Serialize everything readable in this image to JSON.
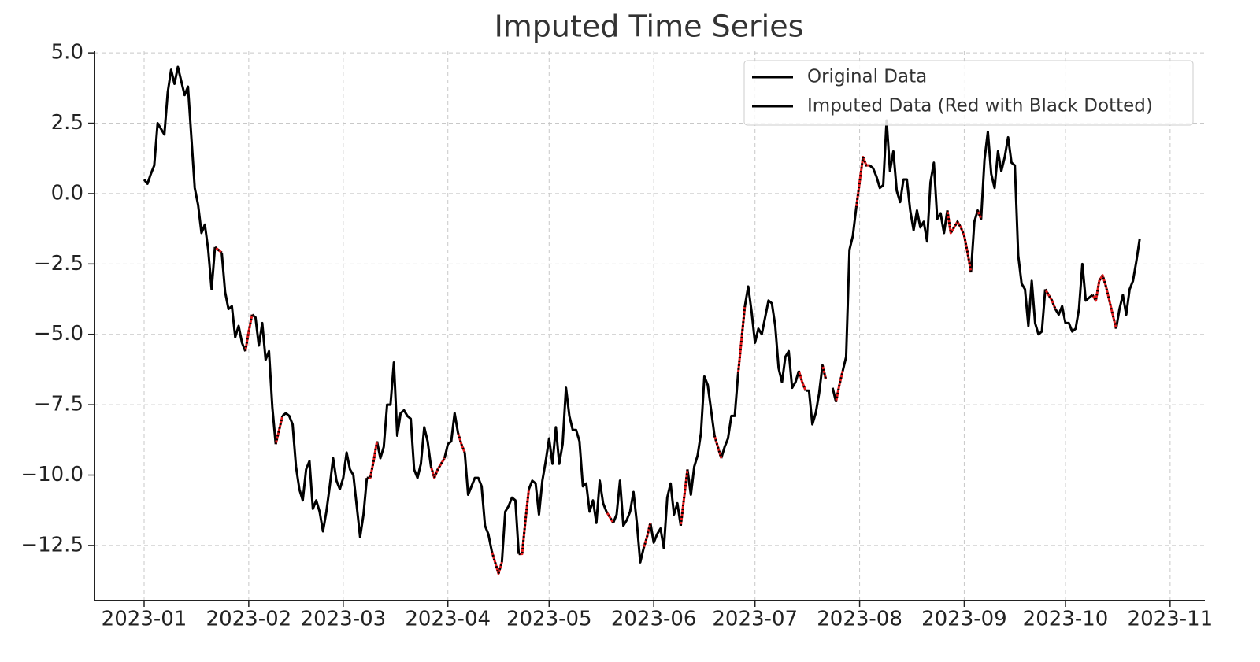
{
  "chart_data": {
    "type": "line",
    "title": "Imputed Time Series",
    "x": [
      0,
      1,
      2,
      3,
      4,
      5,
      6,
      7,
      8,
      9,
      10,
      11,
      12,
      13,
      14,
      15,
      16,
      17,
      18,
      19,
      20,
      21,
      22,
      23,
      24,
      25,
      26,
      27,
      28,
      29,
      30,
      31,
      32,
      33,
      34,
      35,
      36,
      37,
      38,
      39,
      40,
      41,
      42,
      43,
      44,
      45,
      46,
      47,
      48,
      49,
      50,
      51,
      52,
      53,
      54,
      55,
      56,
      57,
      58,
      59,
      60,
      61,
      62,
      63,
      64,
      65,
      66,
      67,
      68,
      69,
      70,
      71,
      72,
      73,
      74,
      75,
      76,
      77,
      78,
      79,
      80,
      81,
      82,
      83,
      84,
      85,
      86,
      87,
      88,
      89,
      90,
      91,
      92,
      93,
      94,
      95,
      96,
      97,
      98,
      99,
      100,
      101,
      102,
      103,
      104,
      105,
      106,
      107,
      108,
      109,
      110,
      111,
      112,
      113,
      114,
      115,
      116,
      117,
      118,
      119,
      120,
      121,
      122,
      123,
      124,
      125,
      126,
      127,
      128,
      129,
      130,
      131,
      132,
      133,
      134,
      135,
      136,
      137,
      138,
      139,
      140,
      141,
      142,
      143,
      144,
      145,
      146,
      147,
      148,
      149,
      150,
      151,
      152,
      153,
      154,
      155,
      156,
      157,
      158,
      159,
      160,
      161,
      162,
      163,
      164,
      165,
      166,
      167,
      168,
      169,
      170,
      171,
      172,
      173,
      174,
      175,
      176,
      177,
      178,
      179,
      180,
      181,
      182,
      183,
      184,
      185,
      186,
      187,
      188,
      189,
      190,
      191,
      192,
      193,
      194,
      195,
      196,
      197,
      198,
      199,
      200,
      201,
      202,
      203,
      204,
      205,
      206,
      207,
      208,
      209,
      210,
      211,
      212,
      213,
      214,
      215,
      216,
      217,
      218,
      219,
      220,
      221,
      222,
      223,
      224,
      225,
      226,
      227,
      228,
      229,
      230,
      231,
      232,
      233,
      234,
      235,
      236,
      237,
      238,
      239,
      240,
      241,
      242,
      243,
      244,
      245,
      246,
      247,
      248,
      249,
      250,
      251,
      252,
      253,
      254,
      255,
      256,
      257,
      258,
      259,
      260,
      261,
      262,
      263,
      264,
      265,
      266,
      267,
      268,
      269,
      270,
      271,
      272,
      273,
      274,
      275,
      276,
      277,
      278,
      279,
      280,
      281,
      282,
      283,
      284,
      285,
      286,
      287,
      288,
      289,
      290,
      291,
      292,
      293,
      294,
      295
    ],
    "series": [
      {
        "name": "Original Data",
        "color": "#000000",
        "values": [
          0.5,
          0.35,
          0.7,
          1.0,
          2.5,
          2.3,
          2.1,
          3.6,
          4.4,
          3.9,
          4.5,
          4.0,
          3.5,
          3.8,
          2.0,
          0.2,
          -0.4,
          -1.4,
          -1.1,
          -2.0,
          -3.4,
          -1.9,
          null,
          -2.1,
          -3.5,
          -4.1,
          -4.0,
          -5.1,
          -4.7,
          -5.3,
          -5.6,
          null,
          -4.3,
          -4.4,
          -5.4,
          -4.6,
          -5.9,
          -5.6,
          -7.6,
          -8.9,
          null,
          -7.9,
          -7.8,
          -7.9,
          -8.2,
          -9.7,
          -10.5,
          -10.9,
          -9.8,
          -9.5,
          -11.2,
          -10.9,
          -11.3,
          -12.0,
          -11.3,
          -10.4,
          -9.4,
          -10.2,
          -10.5,
          -10.1,
          -9.2,
          -9.8,
          -10.0,
          -11.1,
          -12.2,
          -11.4,
          -10.1,
          null,
          null,
          -8.8,
          -9.4,
          -9.0,
          -7.5,
          -7.5,
          -6.0,
          -8.6,
          -7.8,
          -7.7,
          -7.9,
          -8.0,
          -9.8,
          -10.1,
          -9.6,
          -8.3,
          -8.8,
          -9.7,
          null,
          null,
          null,
          -9.4,
          -8.9,
          -8.8,
          -7.8,
          -8.5,
          null,
          -9.2,
          -10.7,
          -10.4,
          -10.1,
          -10.1,
          -10.4,
          -11.8,
          -12.1,
          -12.7,
          null,
          null,
          -13.1,
          -11.3,
          -11.1,
          -10.8,
          -10.9,
          -12.8,
          null,
          null,
          -10.5,
          -10.2,
          -10.3,
          -11.4,
          -10.2,
          -9.5,
          -8.7,
          -9.6,
          -8.3,
          -9.6,
          -8.9,
          -6.9,
          -7.9,
          -8.4,
          -8.4,
          -8.8,
          -10.4,
          -10.3,
          -11.3,
          -10.9,
          -11.7,
          -10.2,
          -11.0,
          -11.3,
          null,
          -11.7,
          -11.4,
          -10.2,
          -11.8,
          -11.6,
          -11.3,
          -10.6,
          -11.7,
          -13.1,
          -12.6,
          null,
          -11.7,
          -12.4,
          -12.1,
          -11.9,
          -12.6,
          -10.8,
          -10.3,
          -11.4,
          -11.0,
          -11.8,
          null,
          -9.8,
          -10.7,
          -9.7,
          -9.3,
          -8.5,
          -6.5,
          -6.8,
          -7.7,
          -8.6,
          null,
          -9.4,
          -9.0,
          -8.7,
          -7.9,
          -7.9,
          -6.4,
          null,
          -4.0,
          -3.3,
          -4.2,
          -5.3,
          -4.8,
          -5.0,
          -4.4,
          -3.8,
          -3.9,
          -4.7,
          -6.2,
          -6.7,
          -5.8,
          -5.6,
          -6.9,
          -6.7,
          -6.3,
          null,
          -7.0,
          -7.0,
          -8.2,
          -7.8,
          -7.1,
          -6.1,
          -6.6,
          null,
          -6.9,
          -7.4,
          null,
          -6.3,
          -5.8,
          -2.0,
          -1.5,
          -0.5,
          null,
          null,
          null,
          1.0,
          0.9,
          0.6,
          0.2,
          0.3,
          2.6,
          0.8,
          1.5,
          0.1,
          -0.3,
          0.5,
          0.5,
          -0.6,
          -1.3,
          -0.6,
          -1.2,
          -1.0,
          -1.7,
          0.4,
          1.1,
          -0.9,
          -0.7,
          -1.4,
          -0.6,
          null,
          null,
          null,
          null,
          null,
          null,
          -2.8,
          -1.0,
          -0.6,
          -0.9,
          1.2,
          2.2,
          0.7,
          0.2,
          1.5,
          0.8,
          1.3,
          2.0,
          1.1,
          1.0,
          -2.2,
          -3.2,
          -3.4,
          -4.7,
          -3.1,
          -4.6,
          -5.0,
          -4.9,
          -3.4,
          null,
          null,
          -4.1,
          -4.3,
          -4.0,
          -4.6,
          -4.6,
          -4.9,
          -4.8,
          -4.1,
          -2.5,
          -3.8,
          -3.7,
          -3.6,
          null,
          null,
          null,
          null,
          null,
          null,
          -4.8,
          -4.1,
          -3.6,
          -4.3,
          -3.4,
          -3.1,
          -2.4,
          -1.6
        ]
      },
      {
        "name": "Imputed Data (Red with Black Dotted)",
        "color": "#e41a1c",
        "dash_color": "#000000",
        "values": [
          null,
          null,
          null,
          null,
          null,
          null,
          null,
          null,
          null,
          null,
          null,
          null,
          null,
          null,
          null,
          null,
          null,
          null,
          null,
          null,
          null,
          -1.9,
          -2.0,
          -2.1,
          null,
          null,
          null,
          null,
          null,
          null,
          -5.6,
          -4.9,
          -4.3,
          null,
          null,
          null,
          null,
          null,
          null,
          -8.9,
          -8.4,
          -7.9,
          null,
          null,
          null,
          null,
          null,
          null,
          null,
          null,
          null,
          null,
          null,
          null,
          null,
          null,
          null,
          null,
          null,
          null,
          null,
          null,
          null,
          null,
          null,
          null,
          -10.1,
          -10.1,
          -9.5,
          -8.8,
          null,
          null,
          null,
          null,
          null,
          null,
          null,
          null,
          null,
          null,
          null,
          null,
          null,
          null,
          null,
          -9.7,
          -10.1,
          -9.8,
          -9.6,
          -9.4,
          null,
          null,
          null,
          -8.5,
          -8.9,
          -9.2,
          null,
          null,
          null,
          null,
          null,
          null,
          null,
          -12.7,
          -13.1,
          -13.5,
          -13.1,
          null,
          null,
          null,
          null,
          -12.8,
          -12.8,
          -11.6,
          -10.5,
          null,
          null,
          null,
          null,
          null,
          null,
          null,
          null,
          null,
          null,
          null,
          null,
          null,
          null,
          null,
          null,
          null,
          null,
          null,
          null,
          null,
          null,
          -11.3,
          -11.5,
          -11.7,
          null,
          null,
          null,
          null,
          null,
          null,
          null,
          null,
          -12.6,
          -12.2,
          -11.7,
          null,
          null,
          null,
          null,
          null,
          null,
          null,
          null,
          -11.8,
          -10.8,
          -9.8,
          null,
          null,
          null,
          null,
          null,
          null,
          null,
          -8.6,
          -9.0,
          -9.4,
          null,
          null,
          null,
          null,
          -6.4,
          -5.2,
          -4.0,
          null,
          null,
          null,
          null,
          null,
          null,
          null,
          null,
          null,
          null,
          null,
          null,
          null,
          null,
          null,
          -6.3,
          -6.7,
          -7.0,
          null,
          null,
          null,
          null,
          -6.1,
          -6.6,
          null,
          null,
          -7.4,
          -6.8,
          -6.3,
          null,
          null,
          null,
          -0.5,
          0.4,
          1.3,
          1.0,
          1.0,
          null,
          null,
          null,
          null,
          null,
          null,
          null,
          null,
          null,
          null,
          null,
          null,
          null,
          null,
          null,
          null,
          null,
          null,
          null,
          null,
          null,
          null,
          -0.6,
          -1.4,
          -1.2,
          -1.0,
          -1.2,
          -1.5,
          -2.1,
          -2.8,
          null,
          -0.6,
          -0.9,
          null,
          null,
          null,
          null,
          null,
          null,
          null,
          null,
          null,
          null,
          null,
          null,
          null,
          null,
          null,
          null,
          null,
          null,
          -3.4,
          -3.6,
          -3.8,
          -4.1,
          null,
          null,
          null,
          null,
          null,
          null,
          null,
          null,
          null,
          null,
          -3.6,
          -3.8,
          -3.1,
          -2.9,
          -3.3,
          -3.8,
          -4.3,
          -4.8,
          null,
          null,
          null,
          null,
          null,
          null,
          null
        ]
      }
    ],
    "xlim": [
      -14.7,
      314.3
    ],
    "xticks": [
      {
        "value": 0,
        "label": "2023-01"
      },
      {
        "value": 31,
        "label": "2023-02"
      },
      {
        "value": 59,
        "label": "2023-03"
      },
      {
        "value": 90,
        "label": "2023-04"
      },
      {
        "value": 120,
        "label": "2023-05"
      },
      {
        "value": 151,
        "label": "2023-06"
      },
      {
        "value": 181,
        "label": "2023-07"
      },
      {
        "value": 212,
        "label": "2023-08"
      },
      {
        "value": 243,
        "label": "2023-09"
      },
      {
        "value": 273,
        "label": "2023-10"
      },
      {
        "value": 304,
        "label": "2023-11"
      }
    ],
    "ylim": [
      -14.46,
      5.06
    ],
    "yticks": [
      {
        "value": 5,
        "label": "5.0"
      },
      {
        "value": 2.5,
        "label": "2.5"
      },
      {
        "value": 0,
        "label": "0.0"
      },
      {
        "value": -2.5,
        "label": "−2.5"
      },
      {
        "value": -5,
        "label": "−5.0"
      },
      {
        "value": -7.5,
        "label": "−7.5"
      },
      {
        "value": -10,
        "label": "−10.0"
      },
      {
        "value": -12.5,
        "label": "−12.5"
      }
    ],
    "grid": true,
    "legend": "upper right"
  }
}
